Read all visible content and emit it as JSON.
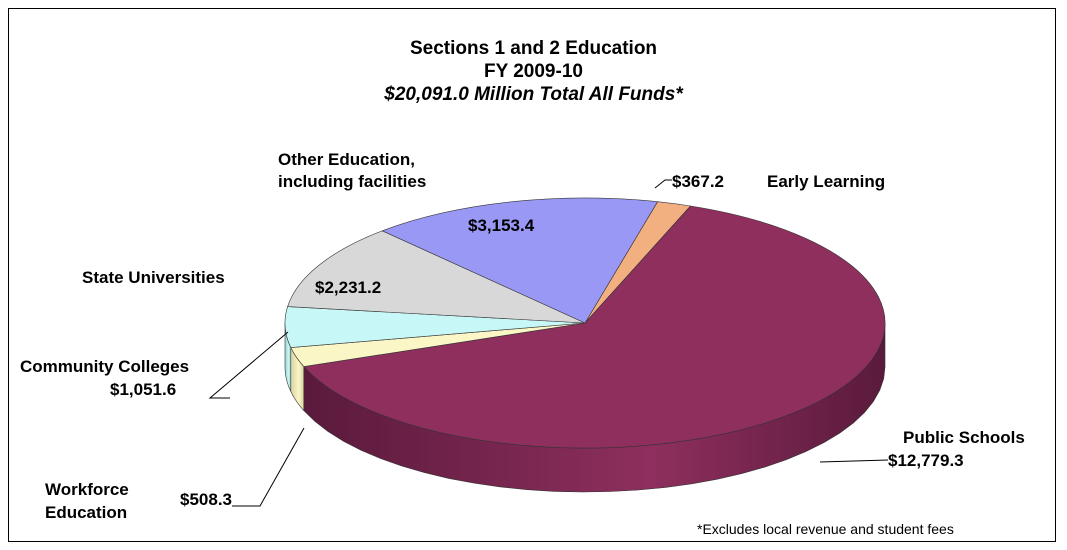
{
  "chart_data": {
    "type": "pie",
    "title": "Sections 1 and 2 Education",
    "subtitle": "FY 2009-10",
    "total_label": "$20,091.0 Million Total All Funds*",
    "footnote": "*Excludes local revenue and student fees",
    "slices": [
      {
        "name": "Early Learning",
        "value": 367.2,
        "label": "$367.2",
        "color": "#f2b081",
        "side_color": "#c98a5c"
      },
      {
        "name": "Public Schools",
        "value": 12779.3,
        "label": "$12,779.3",
        "color": "#8e2f5e",
        "side_color": "#5a1a3b"
      },
      {
        "name": "Workforce Education",
        "value": 508.3,
        "label": "$508.3",
        "color": "#fbf6c6",
        "side_color": "#d8d3a0"
      },
      {
        "name": "Community Colleges",
        "value": 1051.6,
        "label": "$1,051.6",
        "color": "#c8f7f7",
        "side_color": "#98d0d0"
      },
      {
        "name": "State Universities",
        "value": 2231.2,
        "label": "$2,231.2",
        "color": "#d8d8d8",
        "side_color": "#a8a8a8"
      },
      {
        "name": "Other Education, including facilities",
        "value": 3153.4,
        "label": "$3,153.4",
        "color": "#9999f5",
        "side_color": "#6a6ac8"
      }
    ]
  },
  "labels": {
    "other_education_line1": "Other Education,",
    "other_education_line2": "including  facilities",
    "early_learning": "Early Learning",
    "state_universities": "State Universities",
    "community_colleges": "Community Colleges",
    "workforce_line1": "Workforce",
    "workforce_line2": "Education",
    "public_schools": "Public Schools"
  }
}
